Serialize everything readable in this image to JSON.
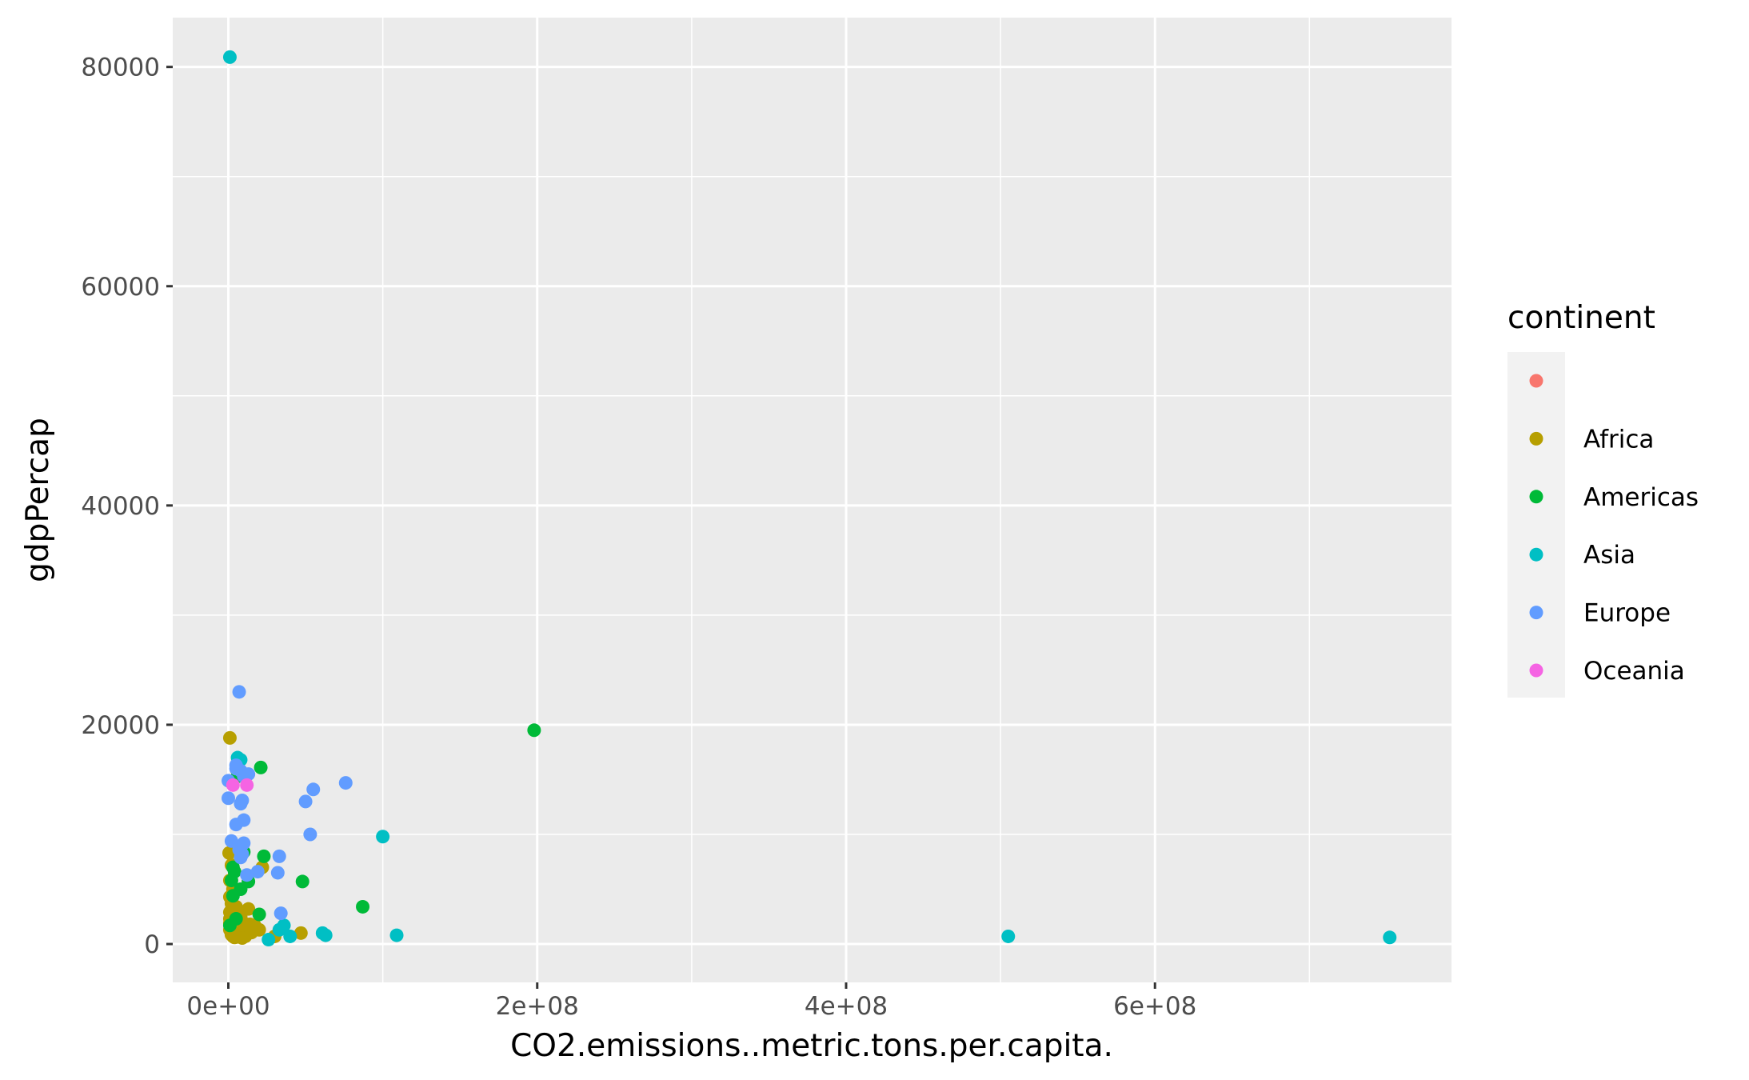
{
  "chart_data": {
    "type": "scatter",
    "xlabel": "CO2.emissions..metric.tons.per.capita.",
    "ylabel": "gdpPercap",
    "xlim": [
      -36000000,
      792000000
    ],
    "ylim": [
      -3500,
      84500
    ],
    "x_ticks": [
      {
        "value": 0,
        "label": "0e+00"
      },
      {
        "value": 200000000,
        "label": "2e+08"
      },
      {
        "value": 400000000,
        "label": "4e+08"
      },
      {
        "value": 600000000,
        "label": "6e+08"
      }
    ],
    "y_ticks": [
      {
        "value": 0,
        "label": "0"
      },
      {
        "value": 20000,
        "label": "20000"
      },
      {
        "value": 40000,
        "label": "40000"
      },
      {
        "value": 60000,
        "label": "60000"
      },
      {
        "value": 80000,
        "label": "80000"
      }
    ],
    "grid": true,
    "legend": {
      "title": "continent",
      "position": "right"
    },
    "series": [
      {
        "name": "",
        "color": "#F8766D",
        "points": []
      },
      {
        "name": "Africa",
        "color": "#B79F00",
        "points": [
          [
            1000000,
            18800
          ],
          [
            500000,
            8300
          ],
          [
            2000000,
            7200
          ],
          [
            22000000,
            7000
          ],
          [
            1000000,
            5800
          ],
          [
            3000000,
            5000
          ],
          [
            1000000,
            4300
          ],
          [
            2000000,
            3700
          ],
          [
            5000000,
            3400
          ],
          [
            13000000,
            3200
          ],
          [
            1000000,
            2900
          ],
          [
            4000000,
            2700
          ],
          [
            8000000,
            2500
          ],
          [
            1000000,
            2300
          ],
          [
            3000000,
            2100
          ],
          [
            6000000,
            2000
          ],
          [
            10000000,
            1900
          ],
          [
            14000000,
            1800
          ],
          [
            17000000,
            1700
          ],
          [
            2000000,
            1600
          ],
          [
            5000000,
            1500
          ],
          [
            9000000,
            1400
          ],
          [
            1000000,
            1300
          ],
          [
            4000000,
            1200
          ],
          [
            7000000,
            1150
          ],
          [
            12000000,
            1100
          ],
          [
            15000000,
            1050
          ],
          [
            3000000,
            1000
          ],
          [
            6000000,
            950
          ],
          [
            10000000,
            900
          ],
          [
            2000000,
            850
          ],
          [
            5000000,
            800
          ],
          [
            8000000,
            750
          ],
          [
            3000000,
            700
          ],
          [
            6000000,
            650
          ],
          [
            11000000,
            700
          ],
          [
            4000000,
            600
          ],
          [
            9000000,
            550
          ],
          [
            30000000,
            700
          ],
          [
            47000000,
            1000
          ],
          [
            20000000,
            1300
          ],
          [
            1000000,
            1900
          ],
          [
            2000000,
            3100
          ]
        ]
      },
      {
        "name": "Americas",
        "color": "#00BA38",
        "points": [
          [
            198000000,
            19500
          ],
          [
            21000000,
            16100
          ],
          [
            6000000,
            15300
          ],
          [
            23000000,
            8000
          ],
          [
            3000000,
            7000
          ],
          [
            2000000,
            5800
          ],
          [
            48000000,
            5700
          ],
          [
            13000000,
            5700
          ],
          [
            8000000,
            5000
          ],
          [
            3000000,
            4400
          ],
          [
            87000000,
            3400
          ],
          [
            20000000,
            2700
          ],
          [
            5000000,
            2300
          ],
          [
            1000000,
            1700
          ],
          [
            4000000,
            6600
          ],
          [
            10000000,
            8400
          ]
        ]
      },
      {
        "name": "Asia",
        "color": "#00BFC4",
        "points": [
          [
            1000000,
            80900
          ],
          [
            6000000,
            17000
          ],
          [
            100000000,
            9800
          ],
          [
            752000000,
            600
          ],
          [
            505000000,
            700
          ],
          [
            109000000,
            800
          ],
          [
            63000000,
            800
          ],
          [
            61000000,
            1000
          ],
          [
            40000000,
            700
          ],
          [
            36000000,
            1700
          ],
          [
            26000000,
            400
          ],
          [
            33000000,
            1300
          ],
          [
            8000000,
            16800
          ]
        ]
      },
      {
        "name": "Europe",
        "color": "#619CFF",
        "points": [
          [
            7000000,
            23000
          ],
          [
            5000000,
            16300
          ],
          [
            8000000,
            15800
          ],
          [
            13000000,
            15500
          ],
          [
            10000000,
            15300
          ],
          [
            0,
            14900
          ],
          [
            76000000,
            14700
          ],
          [
            55000000,
            14100
          ],
          [
            50000000,
            13000
          ],
          [
            0,
            13300
          ],
          [
            9000000,
            13100
          ],
          [
            8000000,
            12800
          ],
          [
            10000000,
            11300
          ],
          [
            5000000,
            10900
          ],
          [
            53000000,
            10000
          ],
          [
            2000000,
            9400
          ],
          [
            10000000,
            9200
          ],
          [
            7000000,
            8600
          ],
          [
            9000000,
            8200
          ],
          [
            33000000,
            8000
          ],
          [
            8000000,
            7900
          ],
          [
            12000000,
            6300
          ],
          [
            19000000,
            6600
          ],
          [
            32000000,
            6500
          ],
          [
            34000000,
            2800
          ],
          [
            5000000,
            16000
          ]
        ]
      },
      {
        "name": "Oceania",
        "color": "#F564E3",
        "points": [
          [
            3000000,
            14500
          ],
          [
            12000000,
            14500
          ]
        ]
      }
    ]
  }
}
